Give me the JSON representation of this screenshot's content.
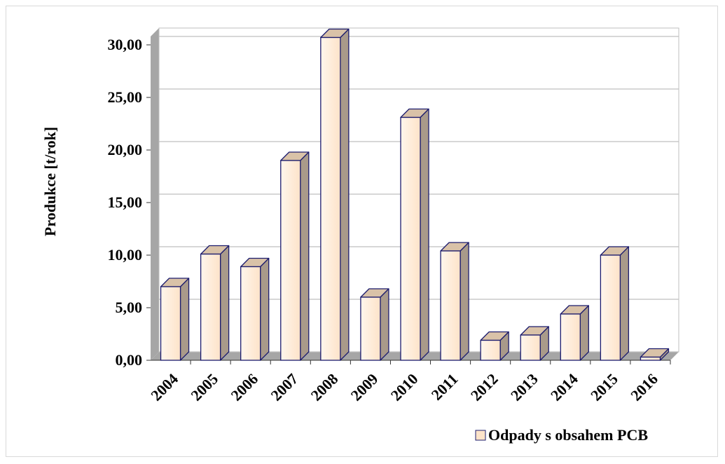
{
  "chart_data": {
    "type": "bar",
    "categories": [
      "2004",
      "2005",
      "2006",
      "2007",
      "2008",
      "2009",
      "2010",
      "2011",
      "2012",
      "2013",
      "2014",
      "2015",
      "2016"
    ],
    "series": [
      {
        "name": "Odpady s obsahem PCB",
        "values": [
          7.0,
          10.1,
          8.9,
          19.0,
          30.7,
          6.0,
          23.1,
          10.4,
          1.9,
          2.4,
          4.4,
          10.0,
          0.3
        ]
      }
    ],
    "xlabel": "",
    "ylabel": "Produkce [t/rok]",
    "ylim": [
      0,
      30
    ],
    "yticks": [
      "0,00",
      "5,00",
      "10,00",
      "15,00",
      "20,00",
      "25,00",
      "30,00"
    ],
    "ytick_values": [
      0,
      5,
      10,
      15,
      20,
      25,
      30
    ],
    "grid": true,
    "three_d": true,
    "legend_position": "bottom-right",
    "colors": {
      "bar_fill": "#fde3c9",
      "bar_fill_light": "#fff6ec",
      "bar_top": "#d9c2a8",
      "bar_side": "#a99a8a",
      "bar_stroke": "#1c1c6e",
      "wall": "#a6a6a6",
      "gridline": "#bfbfbf"
    }
  }
}
